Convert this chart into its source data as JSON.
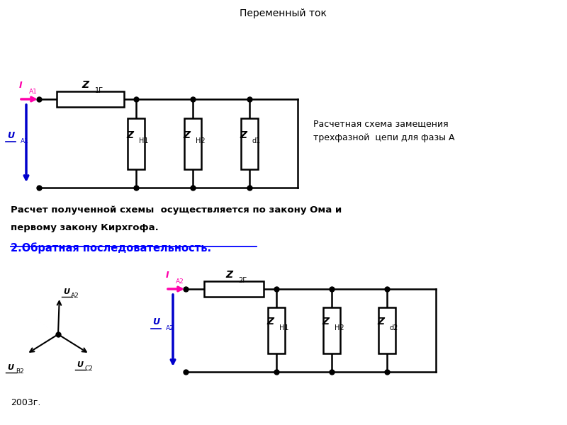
{
  "title": "Переменный ток",
  "bg_color": "#ffffff",
  "line_color": "#000000",
  "magenta_color": "#ff00aa",
  "blue_color": "#0000cc",
  "circuit1_label_right": "Расчетная схема замещения\nтрехфазной  цепи для фазы А",
  "text1_line1": "Расчет полученной схемы  осуществляется по закону Ома и",
  "text1_line2": "первому закону Кирхгофа.",
  "section2_label": "2.Обратная последовательность.",
  "year": "2003г."
}
